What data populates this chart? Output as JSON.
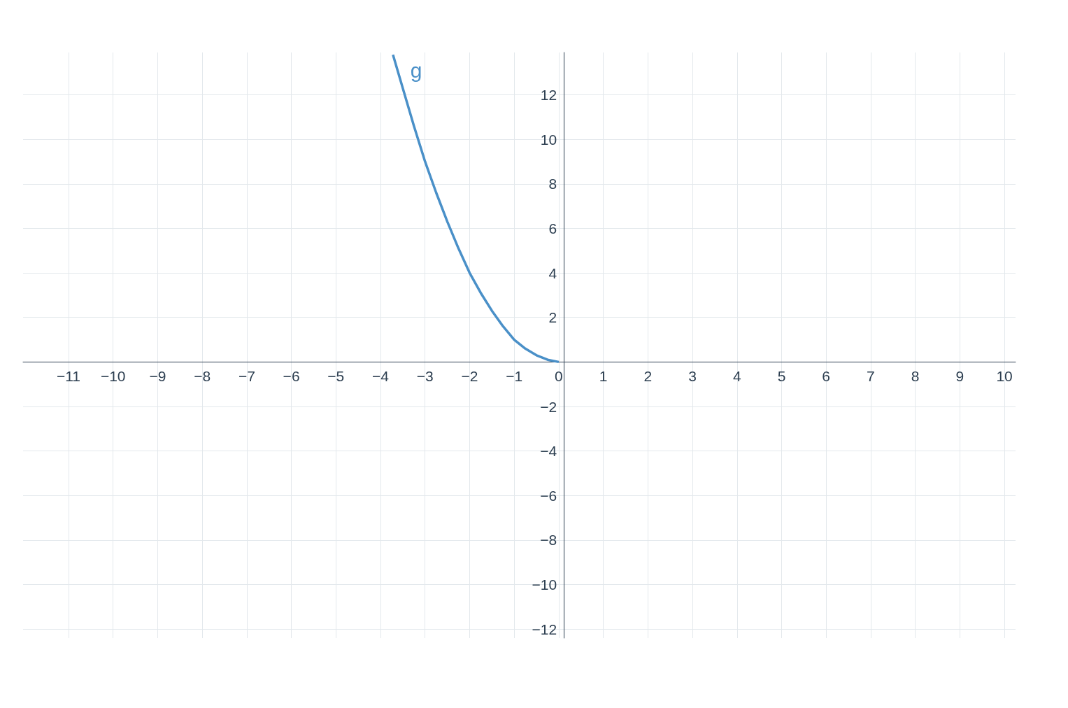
{
  "chart_data": {
    "type": "line",
    "x": [
      -3.72,
      -3.5,
      -3.25,
      -3,
      -2.75,
      -2.5,
      -2.25,
      -2,
      -1.75,
      -1.5,
      -1.25,
      -1,
      -0.75,
      -0.5,
      -0.25,
      0
    ],
    "series": [
      {
        "name": "g",
        "color": "#4a90c8",
        "values": [
          13.8,
          12.3,
          10.6,
          9,
          7.6,
          6.3,
          5.1,
          4,
          3.1,
          2.3,
          1.6,
          1,
          0.6,
          0.3,
          0.1,
          0
        ]
      }
    ],
    "xlim": [
      -12.02,
      10.25
    ],
    "ylim": [
      -12.4,
      13.9
    ],
    "xticks": [
      {
        "value": -11,
        "label": "−11"
      },
      {
        "value": -10,
        "label": "−10"
      },
      {
        "value": -9,
        "label": "−9"
      },
      {
        "value": -8,
        "label": "−8"
      },
      {
        "value": -7,
        "label": "−7"
      },
      {
        "value": -6,
        "label": "−6"
      },
      {
        "value": -5,
        "label": "−5"
      },
      {
        "value": -4,
        "label": "−4"
      },
      {
        "value": -3,
        "label": "−3"
      },
      {
        "value": -2,
        "label": "−2"
      },
      {
        "value": -1,
        "label": "−1"
      },
      0,
      1,
      2,
      3,
      4,
      5,
      6,
      7,
      8,
      9,
      10
    ],
    "yticks": [
      {
        "value": -12,
        "label": "−12"
      },
      {
        "value": -10,
        "label": "−10"
      },
      {
        "value": -8,
        "label": "−8"
      },
      {
        "value": -6,
        "label": "−6"
      },
      {
        "value": -4,
        "label": "−4"
      },
      {
        "value": -2,
        "label": "−2"
      },
      2,
      4,
      6,
      8,
      10,
      12
    ],
    "grid": true,
    "marker": "none",
    "line_style": "solid"
  }
}
